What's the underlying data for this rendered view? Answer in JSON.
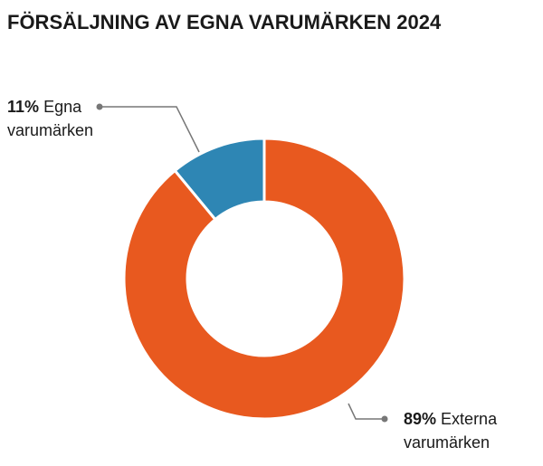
{
  "chart_data": {
    "type": "donut",
    "title": "FÖRSÄLJNING AV EGNA VARUMÄRKEN 2024",
    "categories": [
      "Egna varumärken",
      "Externa varumärken"
    ],
    "values": [
      11,
      89
    ],
    "value_labels": [
      "11%",
      "89%"
    ],
    "colors": [
      "#2e86b4",
      "#e8591f"
    ]
  }
}
